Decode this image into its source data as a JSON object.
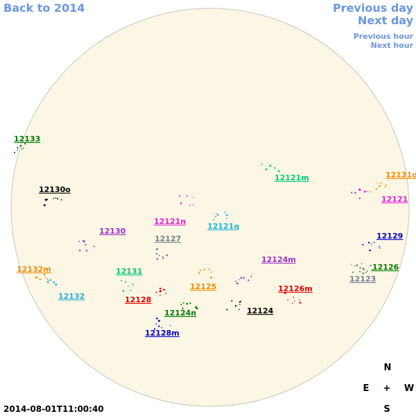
{
  "navigation": {
    "back": "Back to 2014",
    "previous_day": "Previous day",
    "next_day": "Next day",
    "previous_hour": "Previous hour",
    "next_hour": "Next hour"
  },
  "regions": [
    {
      "label": "12133",
      "color": "#007a00"
    },
    {
      "label": "12130o",
      "color": "#000000"
    },
    {
      "label": "12121o",
      "color": "#f08c00"
    },
    {
      "label": "12121m",
      "color": "#00c878"
    },
    {
      "label": "12121",
      "color": "#e020e0"
    },
    {
      "label": "12121n",
      "color": "#e020e0"
    },
    {
      "label": "12121q",
      "color": "#20b4d8"
    },
    {
      "label": "12130",
      "color": "#9932cc"
    },
    {
      "label": "12127",
      "color": "#708090"
    },
    {
      "label": "12129",
      "color": "#0000c8"
    },
    {
      "label": "12126",
      "color": "#007a00"
    },
    {
      "label": "12124m",
      "color": "#9932cc"
    },
    {
      "label": "12123",
      "color": "#708090"
    },
    {
      "label": "12132m",
      "color": "#f08c00"
    },
    {
      "label": "12131",
      "color": "#00c878"
    },
    {
      "label": "12125",
      "color": "#f08c00"
    },
    {
      "label": "12126m",
      "color": "#e00000"
    },
    {
      "label": "12132",
      "color": "#20b4d8"
    },
    {
      "label": "12128",
      "color": "#e00000"
    },
    {
      "label": "12124",
      "color": "#000000"
    },
    {
      "label": "12124n",
      "color": "#007a00"
    },
    {
      "label": "12128m",
      "color": "#0000c8"
    }
  ],
  "compass": {
    "north": "N",
    "east": "E",
    "center": "+",
    "west": "W",
    "south": "S"
  },
  "timestamp": "2014-08-01T11:00:40"
}
